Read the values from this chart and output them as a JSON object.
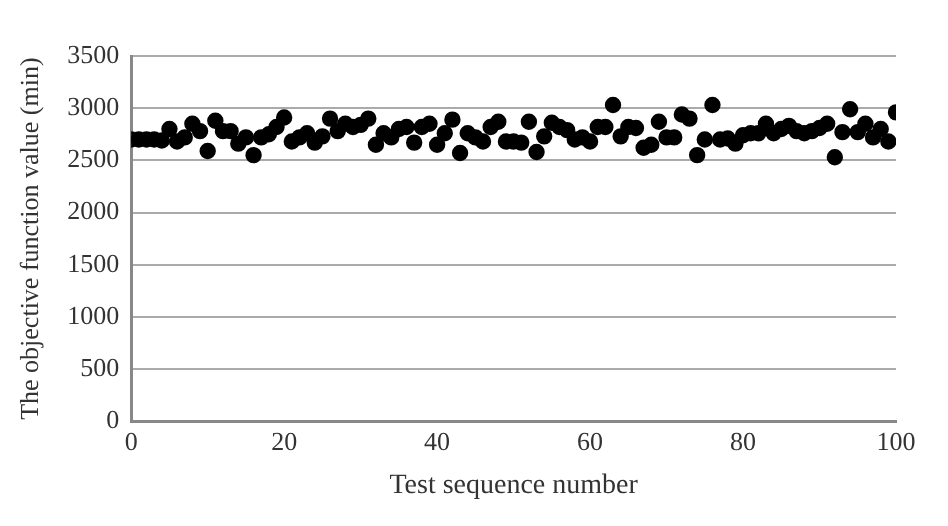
{
  "chart_data": {
    "type": "scatter",
    "xlabel": "Test sequence number",
    "ylabel": "The objective function value (min)",
    "x": [
      0,
      1,
      2,
      3,
      4,
      5,
      6,
      7,
      8,
      9,
      10,
      11,
      12,
      13,
      14,
      15,
      16,
      17,
      18,
      19,
      20,
      21,
      22,
      23,
      24,
      25,
      26,
      27,
      28,
      29,
      30,
      31,
      32,
      33,
      34,
      35,
      36,
      37,
      38,
      39,
      40,
      41,
      42,
      43,
      44,
      45,
      46,
      47,
      48,
      49,
      50,
      51,
      52,
      53,
      54,
      55,
      56,
      57,
      58,
      59,
      60,
      61,
      62,
      63,
      64,
      65,
      66,
      67,
      68,
      69,
      70,
      71,
      72,
      73,
      74,
      75,
      76,
      77,
      78,
      79,
      80,
      81,
      82,
      83,
      84,
      85,
      86,
      87,
      88,
      89,
      90,
      91,
      92,
      93,
      94,
      95,
      96,
      97,
      98,
      99,
      100
    ],
    "series": [
      {
        "color": "#000000",
        "values": [
          2700,
          2700,
          2700,
          2700,
          2690,
          2800,
          2680,
          2720,
          2850,
          2780,
          2590,
          2880,
          2780,
          2780,
          2660,
          2720,
          2550,
          2720,
          2750,
          2820,
          2910,
          2680,
          2720,
          2760,
          2670,
          2730,
          2900,
          2780,
          2850,
          2820,
          2840,
          2900,
          2650,
          2760,
          2720,
          2800,
          2820,
          2670,
          2820,
          2850,
          2650,
          2760,
          2890,
          2570,
          2760,
          2720,
          2680,
          2820,
          2870,
          2680,
          2680,
          2670,
          2870,
          2580,
          2730,
          2860,
          2820,
          2790,
          2700,
          2720,
          2680,
          2820,
          2820,
          3030,
          2730,
          2820,
          2810,
          2620,
          2650,
          2870,
          2720,
          2720,
          2940,
          2900,
          2550,
          2700,
          3030,
          2700,
          2710,
          2660,
          2740,
          2760,
          2760,
          2850,
          2760,
          2800,
          2830,
          2780,
          2760,
          2780,
          2810,
          2850,
          2530,
          2770,
          2990,
          2770,
          2850,
          2720,
          2800,
          2680,
          2960
        ]
      }
    ],
    "xlim": [
      0,
      100
    ],
    "xticks": [
      0,
      20,
      40,
      60,
      80,
      100
    ],
    "ylim": [
      0,
      3500
    ],
    "yticks": [
      0,
      500,
      1000,
      1500,
      2000,
      2500,
      3000,
      3500
    ],
    "grid": "y",
    "marker": "circle",
    "legend": false
  }
}
